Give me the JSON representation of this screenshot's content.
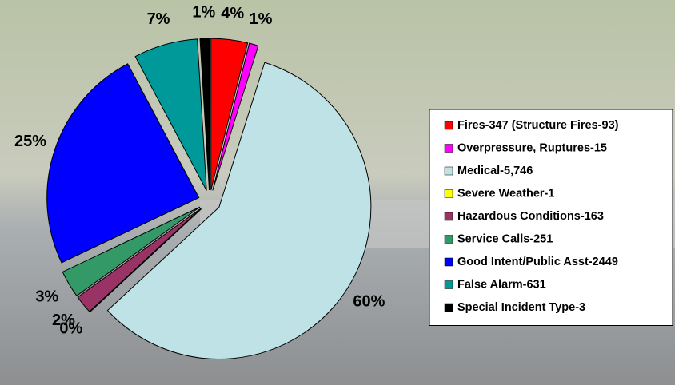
{
  "chart_data": {
    "type": "pie",
    "categories": [
      "Fires-347 (Structure Fires-93)",
      "Overpressure, Ruptures-15",
      "Medical-5,746",
      "Severe Weather-1",
      "Hazardous Conditions-163",
      "Service Calls-251",
      "Good Intent/Public Asst-2449",
      "False Alarm-631",
      "Special Incident Type-3"
    ],
    "values": [
      4,
      1,
      60,
      0,
      2,
      3,
      25,
      7,
      1
    ],
    "value_labels": [
      "4%",
      "1%",
      "60%",
      "0%",
      "2%",
      "3%",
      "25%",
      "7%",
      "1%"
    ],
    "colors": [
      "#ff0000",
      "#ff00ff",
      "#bfe2e6",
      "#ffff00",
      "#993366",
      "#339966",
      "#0000ff",
      "#009999",
      "#000000"
    ],
    "legend": "right"
  }
}
